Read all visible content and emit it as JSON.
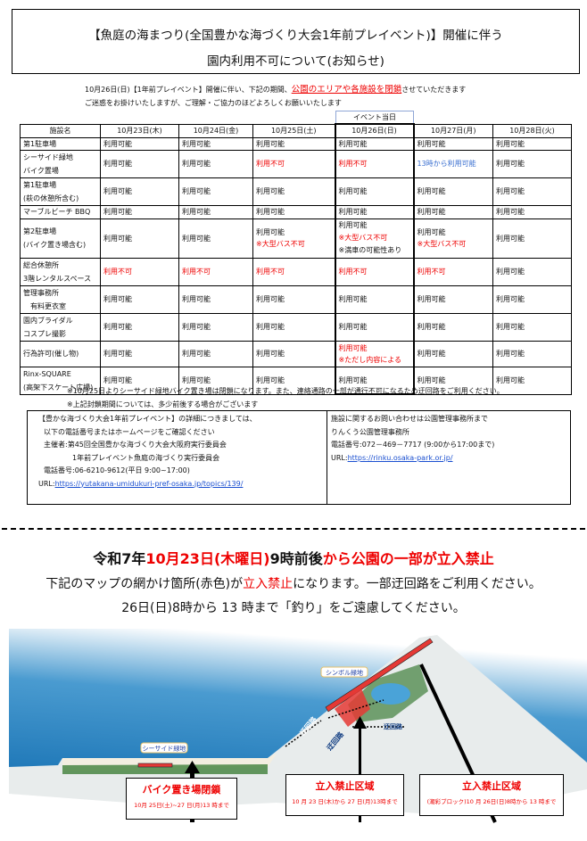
{
  "title": {
    "line1": "【魚庭の海まつり(全国豊かな海づくり大会1年前プレイベント)】開催に伴う",
    "line2": "園内利用不可について(お知らせ)"
  },
  "intro": {
    "line1_pre": "10月26日(日)【1年前プレイベント】開催に伴い、下記の期間、",
    "line1_red": "公園のエリアや各施設を閉鎖",
    "line1_post": "させていただきます",
    "line2": "ご迷惑をお掛けいたしますが、ご理解・ご協力のほどよろしくお願いいたします"
  },
  "event_day_label": "イベント当日",
  "table": {
    "headers": [
      "施設名",
      "10月23日(木)",
      "10月24日(金)",
      "10月25日(土)",
      "10月26日(日)",
      "10月27日(月)",
      "10月28日(火)"
    ],
    "event_column_index": 4,
    "rows": [
      {
        "name": [
          "第1駐車場"
        ],
        "cells": [
          [
            [
              "利用可能",
              "ok"
            ]
          ],
          [
            [
              "利用可能",
              "ok"
            ]
          ],
          [
            [
              "利用可能",
              "ok"
            ]
          ],
          [
            [
              "利用可能",
              "ok"
            ]
          ],
          [
            [
              "利用可能",
              "ok"
            ]
          ],
          [
            [
              "利用可能",
              "ok"
            ]
          ]
        ]
      },
      {
        "name": [
          "シーサイド緑地",
          "バイク置場"
        ],
        "cells": [
          [
            [
              "利用可能",
              "ok"
            ]
          ],
          [
            [
              "利用可能",
              "ok"
            ]
          ],
          [
            [
              "利用不可",
              "red"
            ]
          ],
          [
            [
              "利用不可",
              "red"
            ]
          ],
          [
            [
              "13時から利用可能",
              "blue"
            ]
          ],
          [
            [
              "利用可能",
              "ok"
            ]
          ]
        ]
      },
      {
        "name": [
          "第1駐車場",
          "(萩の休憩所含む)"
        ],
        "cells": [
          [
            [
              "利用可能",
              "ok"
            ]
          ],
          [
            [
              "利用可能",
              "ok"
            ]
          ],
          [
            [
              "利用可能",
              "ok"
            ]
          ],
          [
            [
              "利用可能",
              "ok"
            ]
          ],
          [
            [
              "利用可能",
              "ok"
            ]
          ],
          [
            [
              "利用可能",
              "ok"
            ]
          ]
        ]
      },
      {
        "name": [
          "マーブルビーチ BBQ"
        ],
        "cells": [
          [
            [
              "利用可能",
              "ok"
            ]
          ],
          [
            [
              "利用可能",
              "ok"
            ]
          ],
          [
            [
              "利用可能",
              "ok"
            ]
          ],
          [
            [
              "利用可能",
              "ok"
            ]
          ],
          [
            [
              "利用可能",
              "ok"
            ]
          ],
          [
            [
              "利用可能",
              "ok"
            ]
          ]
        ]
      },
      {
        "name": [
          "第2駐車場",
          "(バイク置き場含む)"
        ],
        "cells": [
          [
            [
              "利用可能",
              "ok"
            ]
          ],
          [
            [
              "利用可能",
              "ok"
            ]
          ],
          [
            [
              "利用可能",
              "ok"
            ],
            [
              "※大型バス不可",
              "red"
            ]
          ],
          [
            [
              "利用可能",
              "ok"
            ],
            [
              "※大型バス不可",
              "red"
            ],
            [
              "※満車の可能性あり",
              "ok"
            ]
          ],
          [
            [
              "利用可能",
              "ok"
            ],
            [
              "※大型バス不可",
              "red"
            ]
          ],
          [
            [
              "利用可能",
              "ok"
            ]
          ]
        ]
      },
      {
        "name": [
          "総合休憩所",
          "3階レンタルスペース"
        ],
        "cells": [
          [
            [
              "利用不可",
              "red"
            ]
          ],
          [
            [
              "利用不可",
              "red"
            ]
          ],
          [
            [
              "利用不可",
              "red"
            ]
          ],
          [
            [
              "利用不可",
              "red"
            ]
          ],
          [
            [
              "利用不可",
              "red"
            ]
          ],
          [
            [
              "利用可能",
              "ok"
            ]
          ]
        ]
      },
      {
        "name": [
          "管理事務所",
          "　有料更衣室"
        ],
        "cells": [
          [
            [
              "利用可能",
              "ok"
            ]
          ],
          [
            [
              "利用可能",
              "ok"
            ]
          ],
          [
            [
              "利用可能",
              "ok"
            ]
          ],
          [
            [
              "利用可能",
              "ok"
            ]
          ],
          [
            [
              "利用可能",
              "ok"
            ]
          ],
          [
            [
              "利用可能",
              "ok"
            ]
          ]
        ]
      },
      {
        "name": [
          "園内ブライダル",
          "コスプレ撮影"
        ],
        "cells": [
          [
            [
              "利用可能",
              "ok"
            ]
          ],
          [
            [
              "利用可能",
              "ok"
            ]
          ],
          [
            [
              "利用可能",
              "ok"
            ]
          ],
          [
            [
              "利用可能",
              "ok"
            ]
          ],
          [
            [
              "利用可能",
              "ok"
            ]
          ],
          [
            [
              "利用可能",
              "ok"
            ]
          ]
        ]
      },
      {
        "name": [
          "行為許可(催し物)"
        ],
        "cells": [
          [
            [
              "利用可能",
              "ok"
            ]
          ],
          [
            [
              "利用可能",
              "ok"
            ]
          ],
          [
            [
              "利用可能",
              "ok"
            ]
          ],
          [
            [
              "利用可能",
              "red"
            ],
            [
              "※ただし内容による",
              "red"
            ]
          ],
          [
            [
              "利用可能",
              "ok"
            ]
          ],
          [
            [
              "利用可能",
              "ok"
            ]
          ]
        ]
      },
      {
        "name": [
          "Rinx-SQUARE",
          "(高架下スケート広場)"
        ],
        "cells": [
          [
            [
              "利用可能",
              "ok"
            ]
          ],
          [
            [
              "利用可能",
              "ok"
            ]
          ],
          [
            [
              "利用可能",
              "ok"
            ]
          ],
          [
            [
              "利用可能",
              "ok"
            ]
          ],
          [
            [
              "利用可能",
              "ok"
            ]
          ],
          [
            [
              "利用可能",
              "ok"
            ]
          ]
        ]
      }
    ]
  },
  "notes": [
    "※10月25日よりシーサイド緑地バイク置き場は閉鎖になります。また、連絡通路の一部が通行不可になるため迂回路をご利用ください。",
    "※上記封鎖期間については、多少前後する場合がございます"
  ],
  "info_left": {
    "lines": [
      "【豊かな海づくり大会1年前プレイベント】の詳細につきましては、",
      "以下の電話番号またはホームページをご確認ください",
      "主催者:第45回全国豊かな海づくり大会大阪府実行委員会",
      "　　　　1年前プレイベント魚庭の海づくり実行委員会",
      "電話番号:06-6210-9612(平日 9:00~17:00)"
    ],
    "url_label": "URL:",
    "url": "https://yutakana-umidukuri-pref-osaka.jp/topics/139/"
  },
  "info_right": {
    "lines": [
      "施設に関するお問い合わせは公園管理事務所まで",
      "りんくう公園管理事務所",
      "電話番号:072－469－7717 (9:00から17:00まで)"
    ],
    "url_label": "URL:",
    "url": "https://rinku.osaka-park.or.jp/"
  },
  "headline": {
    "p1": "令和7年",
    "p2": "10月23日(木曜日)",
    "p3": "9時前後",
    "p4": "から公園の一部が立入禁止"
  },
  "sub1": {
    "pre": "下記のマップの網かけ箇所(赤色)が",
    "red": "立入禁止",
    "post": "になります。一部迂回路をご利用ください。"
  },
  "sub2": "26日(日)8時から 13 時まで「釣り」をご遠慮してください。",
  "map": {
    "area_labels": [
      "シーサイド緑地",
      "シンボル緑地"
    ],
    "detour_label": "迂回路",
    "callouts": [
      {
        "title": "バイク置き場閉鎖",
        "period": "10月 25日(土)~27 日(月)13 時まで"
      },
      {
        "title": "立入禁止区域",
        "period": "10 月 23 日(木)から 27 日(月)13時まで"
      },
      {
        "title": "立入禁止区域",
        "period": "(潮彩ブロック)10 月 26日(日)8時から 13 時まで"
      }
    ],
    "colors": {
      "sea": "#2f86c2",
      "closed": "#e53935",
      "land": "#e8ecec",
      "green": "#3f7f3a"
    }
  }
}
